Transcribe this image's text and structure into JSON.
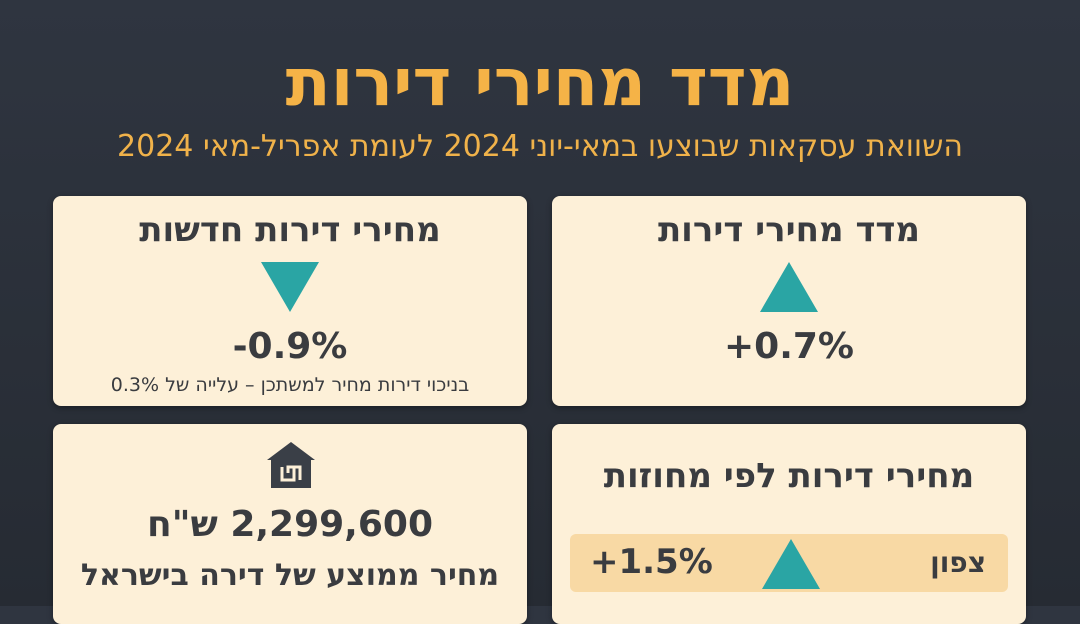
{
  "header": {
    "title": "מדד מחירי דירות",
    "subtitle": "השוואת עסקאות שבוצעו במאי-יוני 2024 לעומת אפריל-מאי 2024"
  },
  "cards": {
    "index": {
      "title": "מדד מחירי דירות",
      "change": "+0.7%",
      "direction": "up"
    },
    "new_apartments": {
      "title": "מחירי דירות חדשות",
      "change": "-0.9%",
      "direction": "down",
      "note": "בניכוי דירות מחיר למשתכן – עלייה של 0.3%"
    },
    "average_price": {
      "icon": "house-shekel-icon",
      "value": "2,299,600 ש\"ח",
      "label": "מחיר ממוצע של דירה בישראל"
    },
    "by_district": {
      "title": "מחירי דירות לפי מחוזות",
      "rows": [
        {
          "name": "צפון",
          "change": "+1.5%",
          "direction": "up"
        }
      ]
    }
  },
  "colors": {
    "background": "#2b3038",
    "accent": "#f5b347",
    "card": "#fdf0d8",
    "triangle": "#2aa5a4",
    "row_highlight": "#f8d9a4"
  }
}
